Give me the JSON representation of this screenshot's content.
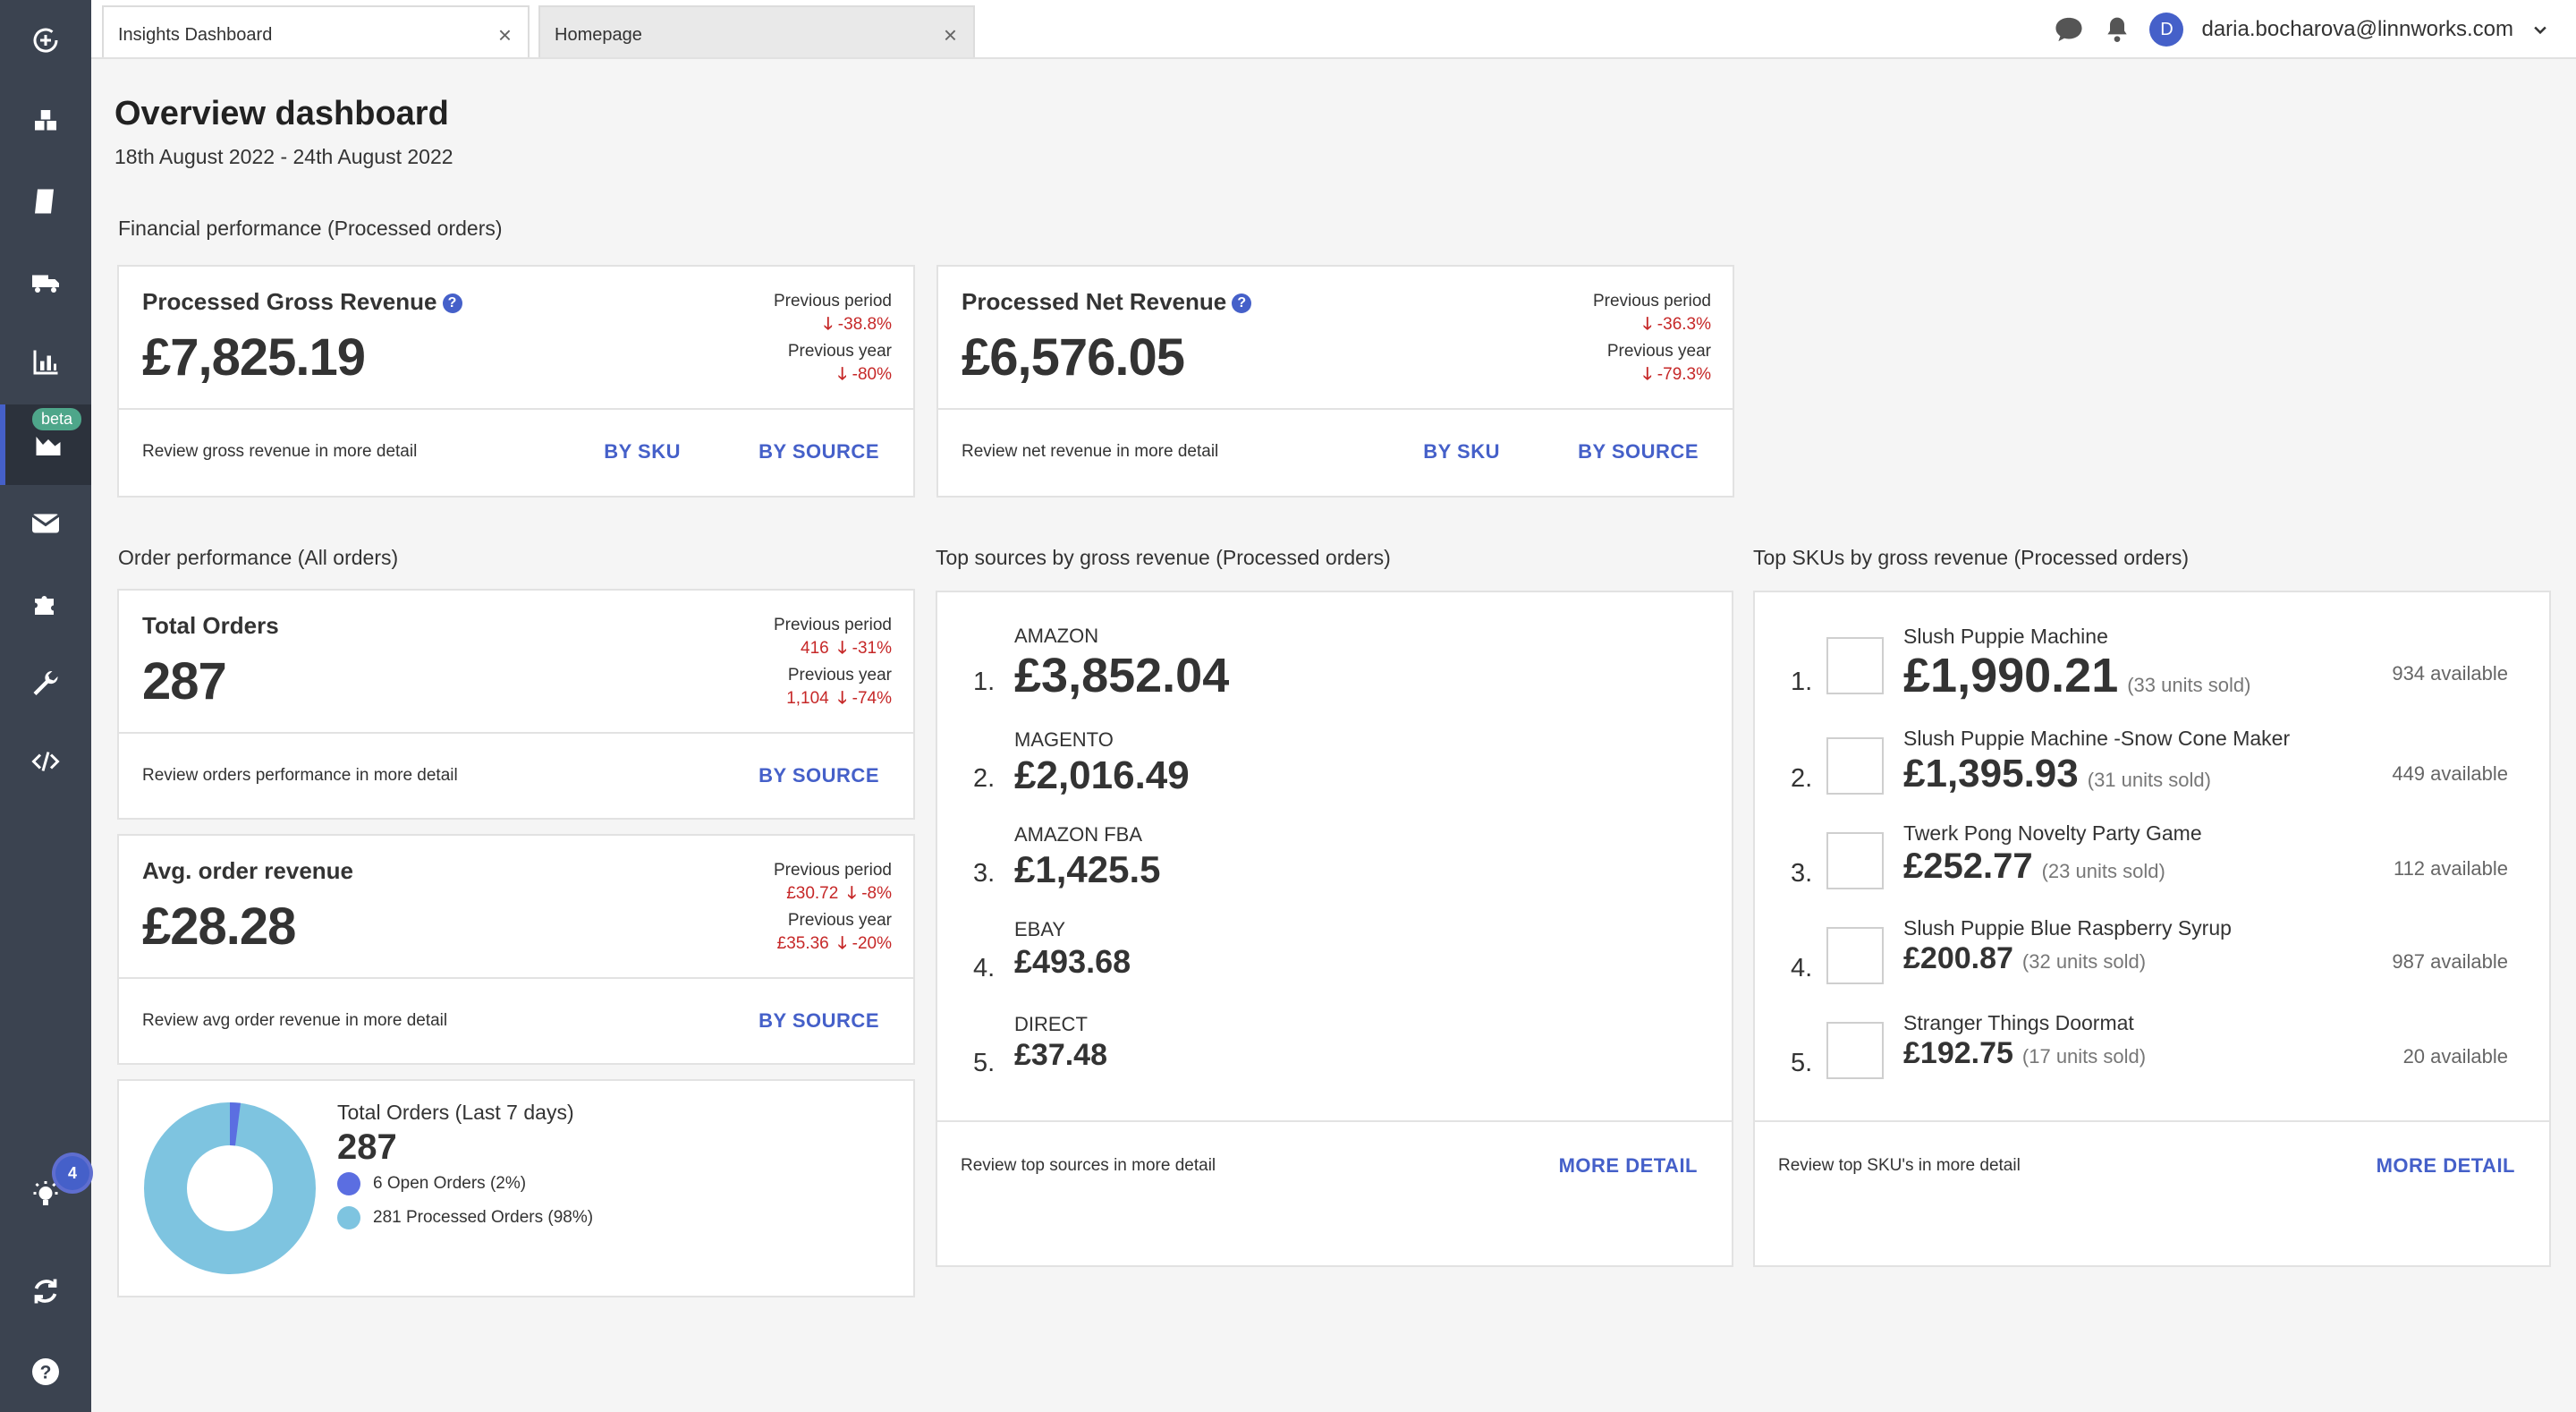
{
  "tabs": [
    {
      "label": "Insights Dashboard"
    },
    {
      "label": "Homepage"
    }
  ],
  "user": {
    "initial": "D",
    "email": "daria.bocharova@linnworks.com"
  },
  "sidebar": {
    "beta_label": "beta",
    "notification_count": "4"
  },
  "page": {
    "title": "Overview dashboard",
    "date_range": "18th August 2022 - 24th August 2022"
  },
  "sections": {
    "financial": "Financial performance (Processed orders)",
    "orders": "Order performance (All orders)",
    "sources": "Top sources by gross revenue (Processed orders)",
    "skus": "Top SKUs by gross revenue (Processed orders)"
  },
  "gross": {
    "title": "Processed Gross Revenue",
    "value": "£7,825.19",
    "prev_period_label": "Previous period",
    "prev_period": "-38.8%",
    "prev_year_label": "Previous year",
    "prev_year": "-80%",
    "foot": "Review gross revenue in more detail",
    "by_sku": "BY SKU",
    "by_source": "BY SOURCE"
  },
  "net": {
    "title": "Processed Net Revenue",
    "value": "£6,576.05",
    "prev_period_label": "Previous period",
    "prev_period": "-36.3%",
    "prev_year_label": "Previous year",
    "prev_year": "-79.3%",
    "foot": "Review net revenue in more detail",
    "by_sku": "BY SKU",
    "by_source": "BY SOURCE"
  },
  "total_orders": {
    "title": "Total Orders",
    "value": "287",
    "prev_period_label": "Previous period",
    "prev_period_value": "416",
    "prev_period": "-31%",
    "prev_year_label": "Previous year",
    "prev_year_value": "1,104",
    "prev_year": "-74%",
    "foot": "Review orders performance in more detail",
    "by_source": "BY SOURCE"
  },
  "avg_order": {
    "title": "Avg. order revenue",
    "value": "£28.28",
    "prev_period_label": "Previous period",
    "prev_period_value": "£30.72",
    "prev_period": "-8%",
    "prev_year_label": "Previous year",
    "prev_year_value": "£35.36",
    "prev_year": "-20%",
    "foot": "Review avg order revenue in more detail",
    "by_source": "BY SOURCE"
  },
  "donut": {
    "title": "Total Orders (Last 7 days)",
    "value": "287",
    "open_label": "6 Open Orders (2%)",
    "processed_label": "281 Processed Orders (98%)",
    "open_fraction": 0.02,
    "open_color": "#5b6ee1",
    "processed_color": "#7ec4e0"
  },
  "sources": {
    "items": [
      {
        "rank": "1.",
        "name": "AMAZON",
        "value": "£3,852.04"
      },
      {
        "rank": "2.",
        "name": "MAGENTO",
        "value": "£2,016.49"
      },
      {
        "rank": "3.",
        "name": "AMAZON FBA",
        "value": "£1,425.5"
      },
      {
        "rank": "4.",
        "name": "EBAY",
        "value": "£493.68"
      },
      {
        "rank": "5.",
        "name": "DIRECT",
        "value": "£37.48"
      }
    ],
    "foot": "Review top sources in more detail",
    "more": "MORE DETAIL"
  },
  "skus": {
    "items": [
      {
        "rank": "1.",
        "name": "Slush Puppie Machine",
        "value": "£1,990.21",
        "units": "(33 units sold)",
        "available": "934 available"
      },
      {
        "rank": "2.",
        "name": "Slush Puppie Machine -Snow Cone Maker",
        "value": "£1,395.93",
        "units": "(31 units sold)",
        "available": "449 available"
      },
      {
        "rank": "3.",
        "name": "Twerk Pong Novelty Party Game",
        "value": "£252.77",
        "units": "(23 units sold)",
        "available": "112 available"
      },
      {
        "rank": "4.",
        "name": "Slush Puppie Blue Raspberry Syrup",
        "value": "£200.87",
        "units": "(32 units sold)",
        "available": "987 available"
      },
      {
        "rank": "5.",
        "name": "Stranger Things Doormat",
        "value": "£192.75",
        "units": "(17 units sold)",
        "available": "20 available"
      }
    ],
    "foot": "Review top SKU's in more detail",
    "more": "MORE DETAIL"
  },
  "icons": [
    "refresh-plus-icon",
    "boxes-icon",
    "book-icon",
    "truck-icon",
    "bar-chart-icon",
    "area-chart-icon",
    "mail-icon",
    "puzzle-icon",
    "wrench-icon",
    "code-icon",
    "lightbulb-icon",
    "sync-icon",
    "help-icon",
    "chat-icon",
    "bell-icon",
    "chevron-down-icon",
    "arrow-down-icon",
    "close-icon"
  ]
}
